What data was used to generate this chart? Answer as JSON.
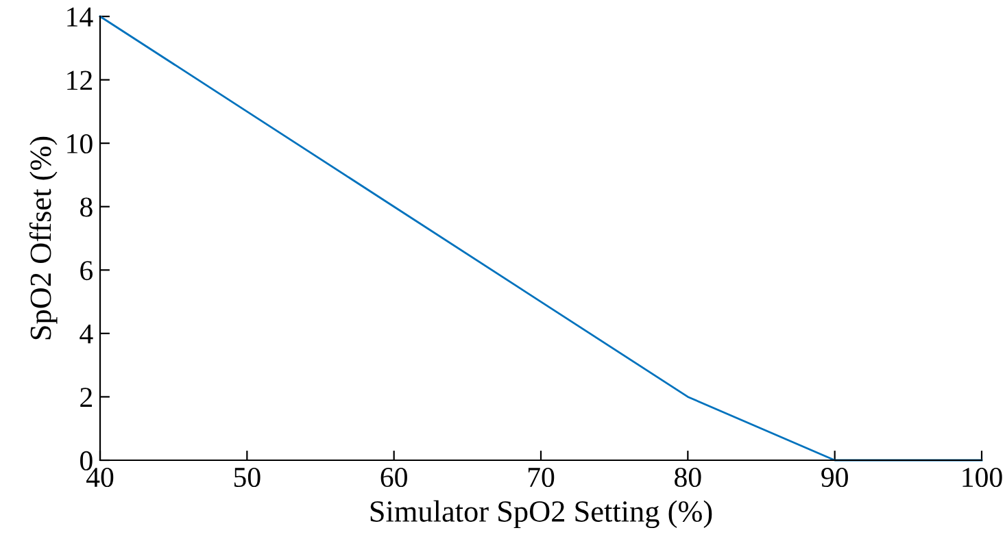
{
  "chart_data": {
    "type": "line",
    "xlabel": "Simulator SpO2 Setting (%)",
    "ylabel": "SpO2 Offset (%)",
    "x": [
      40,
      50,
      60,
      70,
      80,
      90,
      100
    ],
    "series": [
      {
        "color": "#0072bd",
        "values": [
          14,
          11,
          8,
          5,
          2,
          0,
          0
        ]
      }
    ],
    "xlim": [
      40,
      100
    ],
    "xticks": [
      40,
      50,
      60,
      70,
      80,
      90,
      100
    ],
    "ylim": [
      0,
      14
    ],
    "yticks": [
      0,
      2,
      4,
      6,
      8,
      10,
      12,
      14
    ],
    "grid": false,
    "legend": false,
    "marker": "none",
    "line_style": "solid"
  }
}
